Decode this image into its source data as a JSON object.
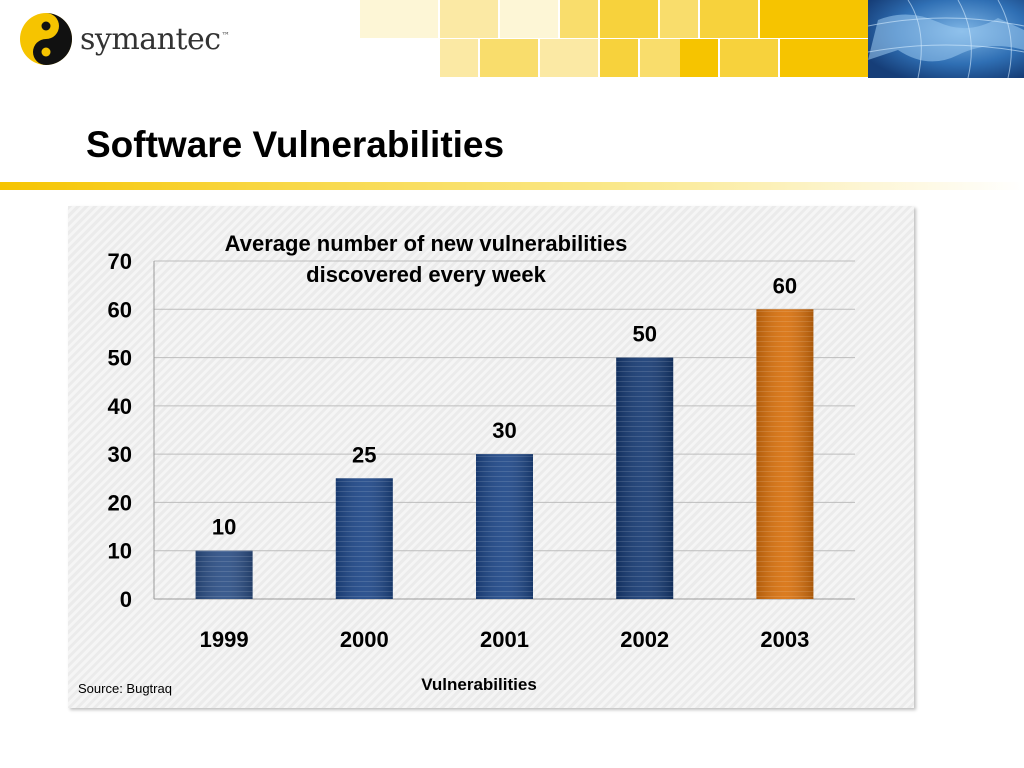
{
  "header": {
    "brand": "symantec",
    "brand_mark": "™",
    "colors": {
      "brand_yellow": "#f6c400",
      "tile_palette": [
        "#fdf6d6",
        "#fbe9a4",
        "#f9dd6c",
        "#f7d23c",
        "#f6c400"
      ]
    }
  },
  "slide": {
    "title": "Software Vulnerabilities"
  },
  "chart_data": {
    "type": "bar",
    "title_lines": [
      "Average number of new vulnerabilities",
      "discovered every week"
    ],
    "categories": [
      "1999",
      "2000",
      "2001",
      "2002",
      "2003"
    ],
    "values": [
      10,
      25,
      30,
      50,
      60
    ],
    "xlabel": "Vulnerabilities",
    "ylabel": "",
    "ylim": [
      0,
      70
    ],
    "yticks": [
      0,
      10,
      20,
      30,
      40,
      50,
      60,
      70
    ],
    "grid": true,
    "bar_colors": [
      "#2b4e85",
      "#1d4687",
      "#1d4687",
      "#163a73",
      "#d8700c"
    ],
    "highlight_color": "#d8700c"
  },
  "source_note": "Source: Bugtraq"
}
